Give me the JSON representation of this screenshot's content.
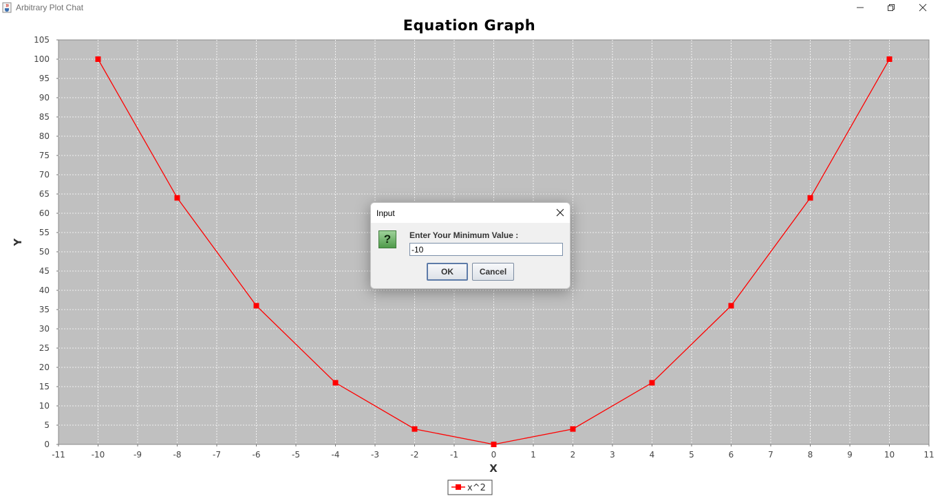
{
  "window": {
    "title": "Arbitrary Plot Chat",
    "app_icon": "java-cup-icon",
    "controls": [
      "minimize-icon",
      "maximize-icon",
      "close-icon"
    ]
  },
  "chart_data": {
    "type": "line",
    "title": "Equation Graph",
    "xlabel": "X",
    "ylabel": "Y",
    "xlim": [
      -11,
      11
    ],
    "ylim": [
      0,
      105
    ],
    "x_ticks": [
      -11,
      -10,
      -9,
      -8,
      -7,
      -6,
      -5,
      -4,
      -3,
      -2,
      -1,
      0,
      1,
      2,
      3,
      4,
      5,
      6,
      7,
      8,
      9,
      10,
      11
    ],
    "y_ticks": [
      0,
      5,
      10,
      15,
      20,
      25,
      30,
      35,
      40,
      45,
      50,
      55,
      60,
      65,
      70,
      75,
      80,
      85,
      90,
      95,
      100,
      105
    ],
    "grid": true,
    "legend_position": "bottom-center",
    "background_color": "#c0c0c0",
    "series": [
      {
        "name": "x^2",
        "color": "#ff0000",
        "marker": "square",
        "x": [
          -10,
          -8,
          -6,
          -4,
          -2,
          0,
          2,
          4,
          6,
          8,
          10
        ],
        "y": [
          100,
          64,
          36,
          16,
          4,
          0,
          4,
          16,
          36,
          64,
          100
        ]
      }
    ]
  },
  "dialog": {
    "title": "Input",
    "icon": "question-icon",
    "icon_glyph": "?",
    "prompt": "Enter Your Minimum Value :",
    "input_value": "-10",
    "ok_label": "OK",
    "cancel_label": "Cancel"
  }
}
